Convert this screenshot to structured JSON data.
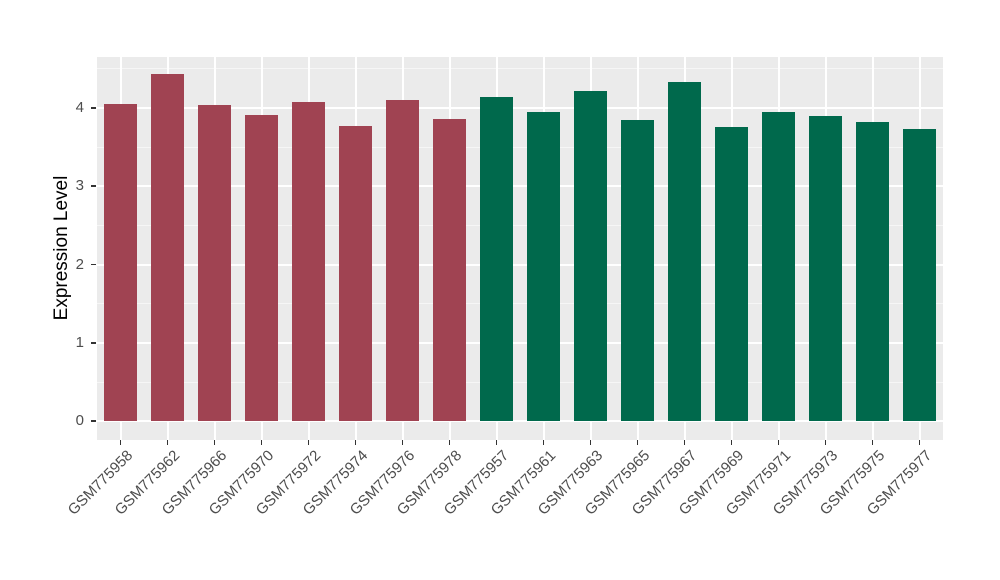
{
  "chart_data": {
    "type": "bar",
    "title": "",
    "xlabel": "",
    "ylabel": "Expression Level",
    "ylim": [
      -0.24,
      4.65
    ],
    "yticks": [
      0,
      1,
      2,
      3,
      4
    ],
    "minor_yticks": [
      0.5,
      1.5,
      2.5,
      3.5,
      4.5
    ],
    "grid": true,
    "legend_position": "none",
    "panel_background": "#EBEBEB",
    "grid_color": "#FFFFFF",
    "tick_color": "#333333",
    "tick_label_color": "#4D4D4D",
    "axis_title_color": "#000000",
    "groups": {
      "group1": {
        "color": "#A04352"
      },
      "group2": {
        "color": "#00694C"
      }
    },
    "categories": [
      "GSM775958",
      "GSM775962",
      "GSM775966",
      "GSM775970",
      "GSM775972",
      "GSM775974",
      "GSM775976",
      "GSM775978",
      "GSM775957",
      "GSM775961",
      "GSM775963",
      "GSM775965",
      "GSM775967",
      "GSM775969",
      "GSM775971",
      "GSM775973",
      "GSM775975",
      "GSM775977"
    ],
    "bars": [
      {
        "label": "GSM775958",
        "value": 4.05,
        "group": "group1"
      },
      {
        "label": "GSM775962",
        "value": 4.43,
        "group": "group1"
      },
      {
        "label": "GSM775966",
        "value": 4.04,
        "group": "group1"
      },
      {
        "label": "GSM775970",
        "value": 3.91,
        "group": "group1"
      },
      {
        "label": "GSM775972",
        "value": 4.07,
        "group": "group1"
      },
      {
        "label": "GSM775974",
        "value": 3.77,
        "group": "group1"
      },
      {
        "label": "GSM775976",
        "value": 4.1,
        "group": "group1"
      },
      {
        "label": "GSM775978",
        "value": 3.86,
        "group": "group1"
      },
      {
        "label": "GSM775957",
        "value": 4.14,
        "group": "group2"
      },
      {
        "label": "GSM775961",
        "value": 3.95,
        "group": "group2"
      },
      {
        "label": "GSM775963",
        "value": 4.22,
        "group": "group2"
      },
      {
        "label": "GSM775965",
        "value": 3.85,
        "group": "group2"
      },
      {
        "label": "GSM775967",
        "value": 4.33,
        "group": "group2"
      },
      {
        "label": "GSM775969",
        "value": 3.76,
        "group": "group2"
      },
      {
        "label": "GSM775971",
        "value": 3.95,
        "group": "group2"
      },
      {
        "label": "GSM775973",
        "value": 3.9,
        "group": "group2"
      },
      {
        "label": "GSM775975",
        "value": 3.82,
        "group": "group2"
      },
      {
        "label": "GSM775977",
        "value": 3.73,
        "group": "group2"
      }
    ]
  }
}
